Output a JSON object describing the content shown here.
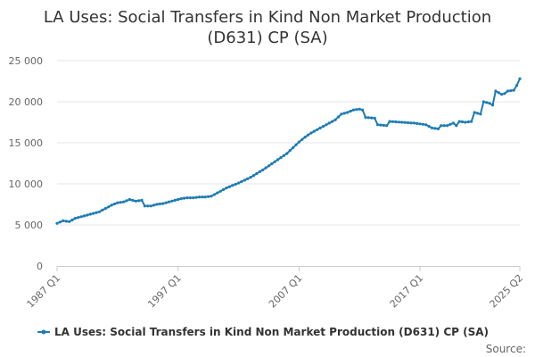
{
  "chart_data": {
    "type": "line",
    "title": "LA Uses: Social Transfers in Kind Non Market Production (D631) CP (SA)",
    "title_lines": [
      "LA Uses: Social Transfers in Kind Non Market Production",
      "(D631) CP (SA)"
    ],
    "xlabel": "",
    "ylabel": "",
    "x_start": "1987 Q1",
    "x_end": "2025 Q2",
    "x_ticks": [
      "1987 Q1",
      "1997 Q1",
      "2007 Q1",
      "2017 Q1",
      "2025 Q2"
    ],
    "y_ticks": [
      "0",
      "5 000",
      "10 000",
      "15 000",
      "20 000",
      "25 000"
    ],
    "y_tick_values": [
      0,
      5000,
      10000,
      15000,
      20000,
      25000
    ],
    "ylim": [
      0,
      25000
    ],
    "grid": true,
    "legend_position": "bottom",
    "series_color": "#1f7cb4",
    "series": [
      {
        "name": "LA Uses: Social Transfers in Kind Non Market Production (D631) CP (SA)",
        "anchors": [
          [
            "1987 Q1",
            5200
          ],
          [
            "1987 Q3",
            5500
          ],
          [
            "1988 Q1",
            5400
          ],
          [
            "1988 Q3",
            5800
          ],
          [
            "1989 Q1",
            6000
          ],
          [
            "1989 Q3",
            6200
          ],
          [
            "1990 Q1",
            6400
          ],
          [
            "1990 Q3",
            6600
          ],
          [
            "1991 Q1",
            7000
          ],
          [
            "1991 Q3",
            7400
          ],
          [
            "1992 Q1",
            7700
          ],
          [
            "1992 Q3",
            7800
          ],
          [
            "1993 Q1",
            8100
          ],
          [
            "1993 Q3",
            7900
          ],
          [
            "1994 Q1",
            8000
          ],
          [
            "1994 Q2",
            7300
          ],
          [
            "1994 Q4",
            7300
          ],
          [
            "1995 Q2",
            7500
          ],
          [
            "1995 Q4",
            7600
          ],
          [
            "1996 Q2",
            7800
          ],
          [
            "1996 Q4",
            8000
          ],
          [
            "1997 Q2",
            8200
          ],
          [
            "1997 Q4",
            8300
          ],
          [
            "1998 Q2",
            8300
          ],
          [
            "1998 Q4",
            8400
          ],
          [
            "1999 Q2",
            8400
          ],
          [
            "1999 Q4",
            8500
          ],
          [
            "2000 Q2",
            8900
          ],
          [
            "2001 Q1",
            9500
          ],
          [
            "2002 Q1",
            10100
          ],
          [
            "2003 Q1",
            10800
          ],
          [
            "2004 Q1",
            11700
          ],
          [
            "2005 Q1",
            12700
          ],
          [
            "2005 Q3",
            13200
          ],
          [
            "2006 Q1",
            13700
          ],
          [
            "2006 Q3",
            14400
          ],
          [
            "2007 Q1",
            15100
          ],
          [
            "2007 Q3",
            15700
          ],
          [
            "2008 Q1",
            16200
          ],
          [
            "2008 Q3",
            16600
          ],
          [
            "2009 Q1",
            17000
          ],
          [
            "2009 Q3",
            17400
          ],
          [
            "2010 Q1",
            17800
          ],
          [
            "2010 Q3",
            18500
          ],
          [
            "2011 Q1",
            18700
          ],
          [
            "2011 Q3",
            19000
          ],
          [
            "2012 Q1",
            19100
          ],
          [
            "2012 Q2",
            19000
          ],
          [
            "2012 Q3",
            18100
          ],
          [
            "2013 Q2",
            18000
          ],
          [
            "2013 Q3",
            17200
          ],
          [
            "2014 Q2",
            17100
          ],
          [
            "2014 Q3",
            17600
          ],
          [
            "2015 Q3",
            17500
          ],
          [
            "2016 Q3",
            17400
          ],
          [
            "2017 Q3",
            17200
          ],
          [
            "2018 Q1",
            16800
          ],
          [
            "2018 Q3",
            16700
          ],
          [
            "2018 Q4",
            17100
          ],
          [
            "2019 Q2",
            17100
          ],
          [
            "2019 Q4",
            17400
          ],
          [
            "2020 Q1",
            17100
          ],
          [
            "2020 Q2",
            17600
          ],
          [
            "2020 Q4",
            17500
          ],
          [
            "2021 Q2",
            17600
          ],
          [
            "2021 Q3",
            18700
          ],
          [
            "2022 Q1",
            18500
          ],
          [
            "2022 Q2",
            20000
          ],
          [
            "2022 Q4",
            19800
          ],
          [
            "2023 Q1",
            19600
          ],
          [
            "2023 Q2",
            21300
          ],
          [
            "2023 Q4",
            20900
          ],
          [
            "2024 Q1",
            21000
          ],
          [
            "2024 Q2",
            21300
          ],
          [
            "2024 Q4",
            21400
          ],
          [
            "2025 Q1",
            22000
          ],
          [
            "2025 Q2",
            22800
          ]
        ]
      }
    ]
  },
  "footer": {
    "source_label": "Source:"
  }
}
